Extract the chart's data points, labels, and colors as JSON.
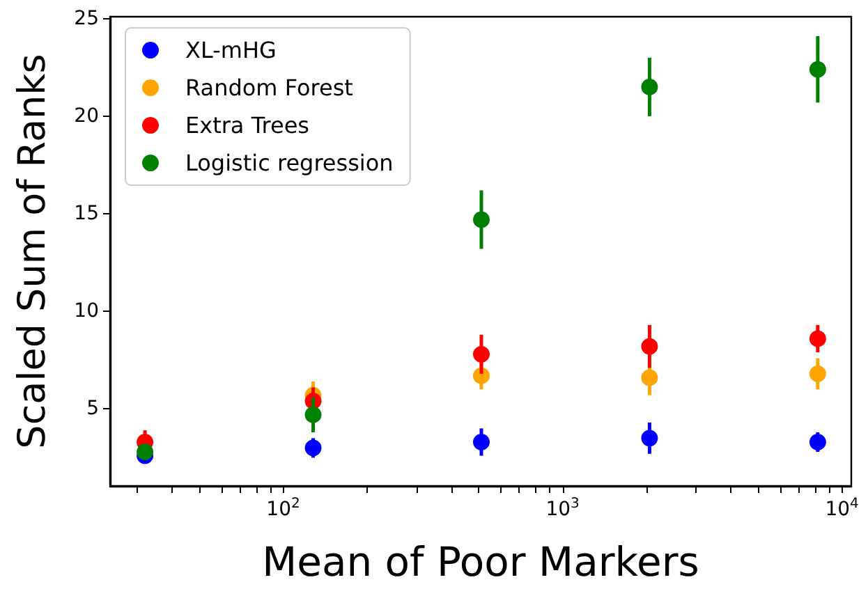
{
  "chart_data": {
    "type": "scatter",
    "xlabel": "Mean of Poor Markers",
    "ylabel": "Scaled Sum of Ranks",
    "x": [
      32,
      128,
      512,
      2048,
      8192
    ],
    "series": [
      {
        "name": "XL-mHG",
        "color": "#0000ff",
        "values": [
          2.6,
          3.0,
          3.3,
          3.5,
          3.3
        ],
        "errors": [
          0.2,
          0.5,
          0.7,
          0.8,
          0.5
        ]
      },
      {
        "name": "Random Forest",
        "color": "#ffa500",
        "values": [
          null,
          5.7,
          6.7,
          6.6,
          6.8
        ],
        "errors": [
          null,
          0.7,
          0.7,
          0.9,
          0.8
        ]
      },
      {
        "name": "Extra Trees",
        "color": "#ff0000",
        "values": [
          3.3,
          5.4,
          7.8,
          8.2,
          8.6
        ],
        "errors": [
          0.6,
          0.7,
          1.0,
          1.1,
          0.7
        ]
      },
      {
        "name": "Logistic regression",
        "color": "#008000",
        "values": [
          2.8,
          4.7,
          14.7,
          21.5,
          22.4
        ],
        "errors": [
          0.3,
          0.9,
          1.5,
          1.5,
          1.7
        ]
      }
    ],
    "log": "x",
    "xlim": [
      24,
      10800
    ],
    "xticks": [
      {
        "value": 30,
        "label": null
      },
      {
        "value": 40,
        "label": null
      },
      {
        "value": 50,
        "label": null
      },
      {
        "value": 60,
        "label": null
      },
      {
        "value": 70,
        "label": null
      },
      {
        "value": 80,
        "label": null
      },
      {
        "value": 90,
        "label": null
      },
      {
        "value": 100,
        "label": "10$^{2}$"
      },
      {
        "value": 200,
        "label": null
      },
      {
        "value": 300,
        "label": null
      },
      {
        "value": 400,
        "label": null
      },
      {
        "value": 500,
        "label": null
      },
      {
        "value": 600,
        "label": null
      },
      {
        "value": 700,
        "label": null
      },
      {
        "value": 800,
        "label": null
      },
      {
        "value": 900,
        "label": null
      },
      {
        "value": 1000,
        "label": "10$^{3}$"
      },
      {
        "value": 2000,
        "label": null
      },
      {
        "value": 3000,
        "label": null
      },
      {
        "value": 4000,
        "label": null
      },
      {
        "value": 5000,
        "label": null
      },
      {
        "value": 6000,
        "label": null
      },
      {
        "value": 7000,
        "label": null
      },
      {
        "value": 8000,
        "label": null
      },
      {
        "value": 9000,
        "label": null
      },
      {
        "value": 10000,
        "label": "10$^{4}$"
      }
    ],
    "ylim": [
      1.05,
      25.1
    ],
    "yticks": [
      5,
      10,
      15,
      20,
      25
    ],
    "grid": false,
    "legend": "top left",
    "marker": "circle"
  }
}
